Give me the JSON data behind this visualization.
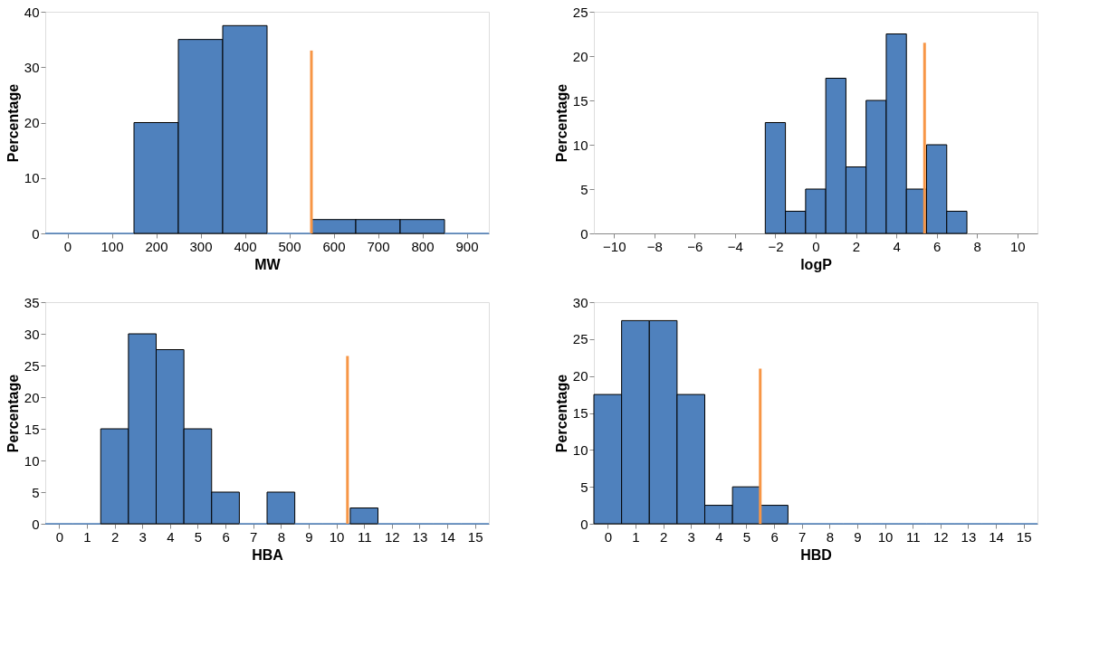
{
  "chart_data": [
    {
      "type": "histogram",
      "xlabel": "MW",
      "ylabel": "Percentage",
      "xlim": [
        -50,
        950
      ],
      "xticks": [
        0,
        100,
        200,
        300,
        400,
        500,
        600,
        700,
        800,
        900
      ],
      "ylim": [
        0,
        40
      ],
      "yticks": [
        0,
        10,
        20,
        30,
        40
      ],
      "series": [
        {
          "color": "#4f81bd",
          "bins": [
            -50,
            50,
            150,
            250,
            350,
            450,
            550,
            650,
            750,
            850,
            950
          ],
          "values": [
            0,
            0,
            20,
            35,
            37.5,
            0,
            2.5,
            2.5,
            2.5,
            0
          ]
        },
        {
          "type": "line",
          "color": "#f79646",
          "x": [
            550,
            550
          ],
          "values": [
            0,
            33
          ]
        }
      ]
    },
    {
      "type": "histogram",
      "xlabel": "logP",
      "ylabel": "Percentage",
      "xlim": [
        -11,
        11
      ],
      "xticks": [
        -10,
        -8,
        -6,
        -4,
        -2,
        0,
        2,
        4,
        6,
        8,
        10
      ],
      "ylim": [
        0,
        25
      ],
      "yticks": [
        0,
        5,
        10,
        15,
        20,
        25
      ],
      "series": [
        {
          "color": "#4f81bd",
          "bins": [
            -2.5,
            -1.5,
            -0.5,
            0.5,
            1.5,
            2.5,
            3.5,
            4.5,
            5.5,
            6.5,
            7.5
          ],
          "values": [
            12.5,
            2.5,
            5,
            17.5,
            7.5,
            15,
            22.5,
            5,
            10,
            2.5
          ]
        },
        {
          "type": "line",
          "color": "#f79646",
          "x": [
            5.4,
            5.4
          ],
          "values": [
            0,
            21.5
          ]
        }
      ]
    },
    {
      "type": "histogram",
      "xlabel": "HBA",
      "ylabel": "Percentage",
      "xlim": [
        -0.5,
        15.5
      ],
      "xticks": [
        0,
        1,
        2,
        3,
        4,
        5,
        6,
        7,
        8,
        9,
        10,
        11,
        12,
        13,
        14,
        15
      ],
      "ylim": [
        0,
        35
      ],
      "yticks": [
        0,
        5,
        10,
        15,
        20,
        25,
        30,
        35
      ],
      "series": [
        {
          "color": "#4f81bd",
          "bins": [
            -0.5,
            0.5,
            1.5,
            2.5,
            3.5,
            4.5,
            5.5,
            6.5,
            7.5,
            8.5,
            9.5,
            10.5,
            11.5,
            12.5,
            13.5,
            14.5,
            15.5
          ],
          "values": [
            0,
            0,
            15,
            30,
            27.5,
            15,
            5,
            0,
            5,
            0,
            0,
            2.5,
            0,
            0,
            0,
            0
          ]
        },
        {
          "type": "line",
          "color": "#f79646",
          "x": [
            10.4,
            10.4
          ],
          "values": [
            0,
            26.5
          ]
        }
      ]
    },
    {
      "type": "histogram",
      "xlabel": "HBD",
      "ylabel": "Percentage",
      "xlim": [
        -0.5,
        15.5
      ],
      "xticks": [
        0,
        1,
        2,
        3,
        4,
        5,
        6,
        7,
        8,
        9,
        10,
        11,
        12,
        13,
        14,
        15
      ],
      "ylim": [
        0,
        30
      ],
      "yticks": [
        0,
        5,
        10,
        15,
        20,
        25,
        30
      ],
      "series": [
        {
          "color": "#4f81bd",
          "bins": [
            -0.5,
            0.5,
            1.5,
            2.5,
            3.5,
            4.5,
            5.5,
            6.5,
            7.5,
            8.5,
            9.5,
            10.5,
            11.5,
            12.5,
            13.5,
            14.5,
            15.5
          ],
          "values": [
            17.5,
            27.5,
            27.5,
            17.5,
            2.5,
            5,
            2.5,
            0,
            0,
            0,
            0,
            0,
            0,
            0,
            0,
            0
          ]
        },
        {
          "type": "line",
          "color": "#f79646",
          "x": [
            5.5,
            5.5
          ],
          "values": [
            0,
            21
          ]
        }
      ]
    }
  ]
}
